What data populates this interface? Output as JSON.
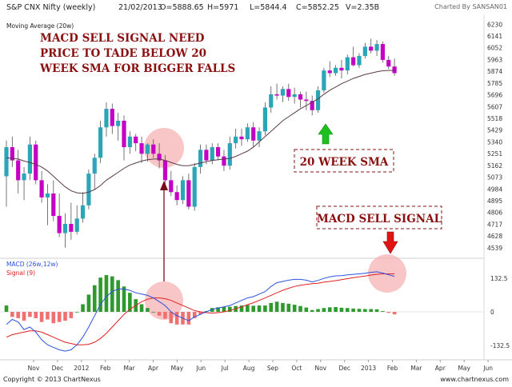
{
  "header": {
    "instrument": "S&P CNX Nifty (weekly)",
    "date": "21/02/2013",
    "open": "O=5888.65",
    "high": "H=5971",
    "low": "L=5844.4",
    "close": "C=5852.25",
    "volume": "V=2.35B",
    "charted_by": "Charted By SANSAN01",
    "ma_label": "Moving Average (20w)"
  },
  "macd_header": {
    "macd_label": "MACD (26w,12w)",
    "signal_label": "Signal (9)"
  },
  "annotations": {
    "main_note": [
      "MACD SELL SIGNAL NEED",
      "PRICE TO TADE BELOW 20",
      "WEEK SMA FOR BIGGER FALLS"
    ],
    "sma_box": "20 WEEK SMA",
    "macd_box": "MACD SELL SIGNAL"
  },
  "footer": {
    "copyright": "Copyright © 2013 ChartNexus",
    "url": "www.chartnexus.com"
  },
  "colors": {
    "up": "#2aa6b8",
    "down": "#c400c4",
    "sma": "#5a3a4a",
    "macd": "#2b52e0",
    "signal": "#e02020",
    "hist_pos": "#2e9a2e",
    "hist_neg": "#f07070",
    "annotation": "#8b1010",
    "highlight": "#f4a8a8"
  },
  "chart_data": [
    {
      "type": "candlestick",
      "title": "S&P CNX Nifty (weekly)",
      "x_tick_labels": [
        "Nov",
        "Dec",
        "2012",
        "Feb",
        "Mar",
        "Apr",
        "May",
        "Jun",
        "Jul",
        "Aug",
        "Sep",
        "Oct",
        "Nov",
        "Dec",
        "2013",
        "Feb",
        "Mar",
        "Apr",
        "May",
        "Jun"
      ],
      "y_tick_labels": [
        4539,
        4628,
        4717,
        4806,
        4895,
        4984,
        5073,
        5162,
        5251,
        5340,
        5429,
        5518,
        5607,
        5696,
        5785,
        5874,
        5963,
        6052,
        6141,
        6230
      ],
      "ylim": [
        4490,
        6280
      ],
      "series": [
        {
          "name": "Moving Average (20w)",
          "ohlc": [
            [
              5080,
              5350,
              4850,
              5300
            ],
            [
              5300,
              5380,
              5150,
              5200
            ],
            [
              5200,
              5280,
              4950,
              5050
            ],
            [
              5050,
              5150,
              4900,
              5100
            ],
            [
              5100,
              5380,
              5050,
              5320
            ],
            [
              5320,
              5350,
              5020,
              5050
            ],
            [
              5050,
              5120,
              4880,
              4920
            ],
            [
              4920,
              5020,
              4710,
              4950
            ],
            [
              4950,
              5050,
              4740,
              4780
            ],
            [
              4780,
              4950,
              4620,
              4650
            ],
            [
              4650,
              4800,
              4540,
              4720
            ],
            [
              4720,
              4880,
              4600,
              4660
            ],
            [
              4660,
              4860,
              4640,
              4760
            ],
            [
              4760,
              4960,
              4730,
              4860
            ],
            [
              4860,
              5130,
              4830,
              5100
            ],
            [
              5100,
              5250,
              4980,
              5220
            ],
            [
              5220,
              5500,
              5180,
              5450
            ],
            [
              5450,
              5640,
              5380,
              5590
            ],
            [
              5590,
              5630,
              5400,
              5460
            ],
            [
              5460,
              5560,
              5350,
              5500
            ],
            [
              5500,
              5540,
              5200,
              5300
            ],
            [
              5300,
              5420,
              5250,
              5380
            ],
            [
              5380,
              5400,
              5270,
              5330
            ],
            [
              5330,
              5380,
              5180,
              5250
            ],
            [
              5250,
              5330,
              5190,
              5320
            ],
            [
              5320,
              5360,
              5220,
              5250
            ],
            [
              5250,
              5330,
              5140,
              5200
            ],
            [
              5200,
              5240,
              5000,
              5050
            ],
            [
              5050,
              5120,
              4930,
              4960
            ],
            [
              4960,
              5010,
              4860,
              4900
            ],
            [
              4900,
              5080,
              4870,
              5050
            ],
            [
              5050,
              5100,
              4830,
              4850
            ],
            [
              4850,
              5180,
              4820,
              5150
            ],
            [
              5150,
              5320,
              5100,
              5280
            ],
            [
              5280,
              5320,
              5170,
              5200
            ],
            [
              5200,
              5330,
              5170,
              5300
            ],
            [
              5300,
              5330,
              5200,
              5230
            ],
            [
              5230,
              5280,
              5120,
              5160
            ],
            [
              5160,
              5380,
              5130,
              5330
            ],
            [
              5330,
              5440,
              5290,
              5380
            ],
            [
              5380,
              5440,
              5310,
              5360
            ],
            [
              5360,
              5480,
              5340,
              5450
            ],
            [
              5450,
              5490,
              5300,
              5350
            ],
            [
              5350,
              5450,
              5300,
              5420
            ],
            [
              5420,
              5640,
              5390,
              5600
            ],
            [
              5600,
              5760,
              5560,
              5700
            ],
            [
              5700,
              5780,
              5660,
              5690
            ],
            [
              5690,
              5760,
              5640,
              5740
            ],
            [
              5740,
              5780,
              5650,
              5680
            ],
            [
              5680,
              5750,
              5630,
              5700
            ],
            [
              5700,
              5720,
              5600,
              5660
            ],
            [
              5660,
              5720,
              5580,
              5650
            ],
            [
              5650,
              5690,
              5540,
              5580
            ],
            [
              5580,
              5760,
              5560,
              5730
            ],
            [
              5730,
              5900,
              5710,
              5880
            ],
            [
              5880,
              5950,
              5830,
              5860
            ],
            [
              5860,
              5920,
              5840,
              5900
            ],
            [
              5900,
              5960,
              5820,
              5880
            ],
            [
              5880,
              6000,
              5850,
              5980
            ],
            [
              5980,
              6060,
              5910,
              5920
            ],
            [
              5920,
              6010,
              5900,
              5990
            ],
            [
              5990,
              6090,
              5970,
              6060
            ],
            [
              6060,
              6120,
              6010,
              6030
            ],
            [
              6030,
              6110,
              5990,
              6080
            ],
            [
              6080,
              6100,
              5940,
              5960
            ],
            [
              5960,
              5990,
              5890,
              5910
            ],
            [
              5910,
              5970,
              5840,
              5860
            ]
          ],
          "sma": [
            5220,
            5215,
            5210,
            5195,
            5185,
            5170,
            5150,
            5120,
            5080,
            5040,
            5000,
            4970,
            4955,
            4950,
            4960,
            4980,
            5010,
            5050,
            5080,
            5110,
            5140,
            5165,
            5180,
            5195,
            5205,
            5210,
            5210,
            5200,
            5185,
            5170,
            5160,
            5160,
            5170,
            5180,
            5190,
            5200,
            5205,
            5210,
            5215,
            5230,
            5250,
            5270,
            5300,
            5340,
            5380,
            5420,
            5460,
            5500,
            5530,
            5560,
            5590,
            5615,
            5640,
            5665,
            5700,
            5730,
            5755,
            5780,
            5800,
            5820,
            5835,
            5850,
            5860,
            5870,
            5878,
            5880,
            5880
          ]
        }
      ]
    },
    {
      "type": "macd",
      "x_tick_labels": [
        "Nov",
        "Dec",
        "2012",
        "Feb",
        "Mar",
        "Apr",
        "May",
        "Jun",
        "Jul",
        "Aug",
        "Sep",
        "Oct",
        "Nov",
        "Dec",
        "2013",
        "Feb",
        "Mar",
        "Apr",
        "May",
        "Jun"
      ],
      "y_tick_labels": [
        132.5,
        0,
        -132.5
      ],
      "ylim": [
        -190,
        190
      ],
      "series": [
        {
          "name": "MACD (26w,12w)",
          "values": [
            -50,
            -30,
            -40,
            -70,
            -60,
            -80,
            -110,
            -130,
            -140,
            -150,
            -155,
            -150,
            -130,
            -100,
            -60,
            -15,
            30,
            60,
            80,
            90,
            90,
            85,
            75,
            70,
            65,
            55,
            40,
            25,
            0,
            -15,
            -25,
            -35,
            -20,
            -10,
            0,
            10,
            15,
            20,
            25,
            35,
            45,
            55,
            60,
            70,
            80,
            100,
            115,
            120,
            125,
            128,
            128,
            125,
            118,
            124,
            132,
            138,
            142,
            143,
            146,
            148,
            150,
            152,
            156,
            158,
            153,
            146,
            140
          ]
        },
        {
          "name": "Signal (9)",
          "values": [
            -100,
            -90,
            -85,
            -80,
            -75,
            -75,
            -80,
            -90,
            -100,
            -110,
            -120,
            -125,
            -130,
            -130,
            -128,
            -120,
            -105,
            -85,
            -60,
            -35,
            -10,
            10,
            25,
            40,
            50,
            55,
            55,
            52,
            45,
            35,
            25,
            15,
            5,
            0,
            -3,
            -5,
            -3,
            0,
            5,
            12,
            20,
            28,
            36,
            45,
            55,
            65,
            75,
            85,
            93,
            100,
            105,
            108,
            111,
            113,
            117,
            120,
            123,
            127,
            131,
            135,
            138,
            141,
            145,
            148,
            150,
            150,
            150
          ]
        },
        {
          "name": "histogram",
          "values": [
            25,
            -20,
            -25,
            -35,
            -20,
            -25,
            -40,
            -30,
            -45,
            -40,
            -35,
            -25,
            0,
            30,
            68,
            105,
            135,
            145,
            140,
            125,
            100,
            75,
            50,
            30,
            15,
            0,
            -15,
            -27,
            -45,
            -50,
            -50,
            -50,
            -25,
            -10,
            3,
            15,
            18,
            20,
            20,
            23,
            25,
            27,
            24,
            25,
            25,
            35,
            40,
            35,
            32,
            28,
            23,
            17,
            7,
            11,
            15,
            18,
            19,
            16,
            15,
            13,
            12,
            11,
            11,
            10,
            3,
            -4,
            -10
          ]
        }
      ]
    }
  ]
}
